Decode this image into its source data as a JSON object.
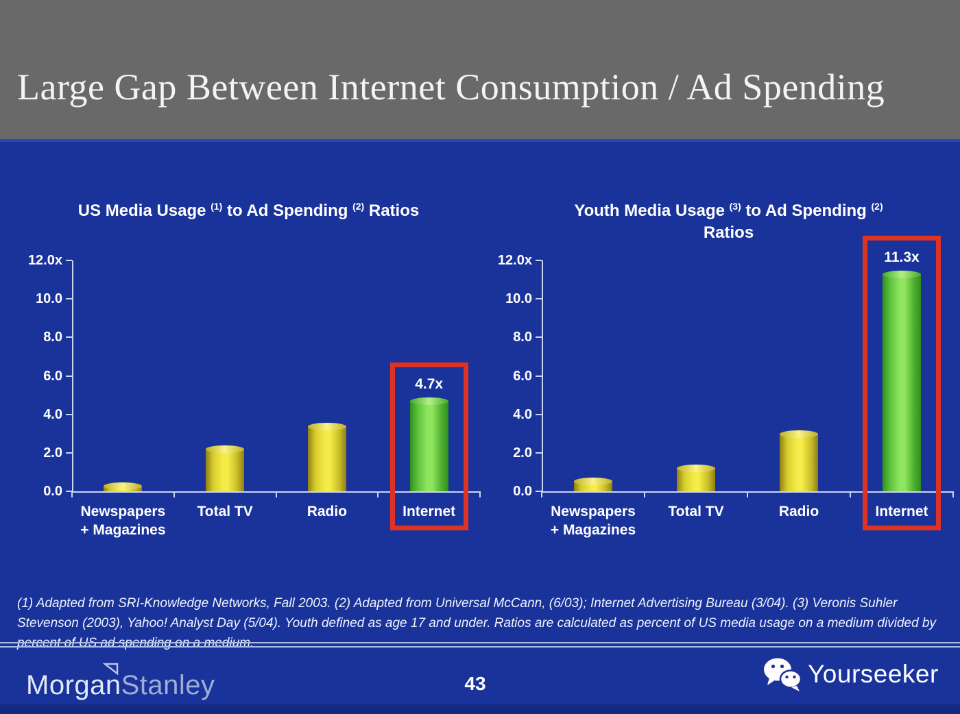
{
  "slide": {
    "title": "Large Gap Between Internet Consumption / Ad Spending",
    "page_number": "43",
    "footnote": "(1) Adapted from SRI-Knowledge Networks, Fall 2003.  (2) Adapted from Universal McCann, (6/03); Internet Advertising Bureau (3/04). (3) Veronis Suhler Stevenson (2003), Yahoo! Analyst Day (5/04).  Youth defined as age 17 and under.  Ratios are calculated as percent of US media usage on a medium divided by percent of US ad spending on a medium."
  },
  "footer": {
    "brand_word_1": "Morgan",
    "brand_word_2": "Stanley",
    "partner_brand": "Yourseeker"
  },
  "colors": {
    "header_gray": "#696969",
    "background_blue": "#1A339B",
    "bottom_strip_blue": "#142A82",
    "axis_light": "#CBD6F2",
    "text_white": "#FFFFFF",
    "bar_yellow_center": "#F4EC48",
    "bar_yellow_edge": "#8F7F14",
    "bar_green_center": "#90E55F",
    "bar_green_edge": "#2E8F1C",
    "highlight_red": "#DE3223"
  },
  "chart_data": [
    {
      "type": "bar",
      "title": "US Media Usage (1) to Ad Spending (2) Ratios",
      "title_segments": [
        {
          "t": "US Media Usage "
        },
        {
          "t": "(1)",
          "sup": true
        },
        {
          "t": " to Ad Spending "
        },
        {
          "t": "(2)",
          "sup": true
        },
        {
          "t": " Ratios"
        }
      ],
      "categories": [
        [
          "Newspapers",
          "+ Magazines"
        ],
        [
          "Total TV"
        ],
        [
          "Radio"
        ],
        [
          "Internet"
        ]
      ],
      "values": [
        0.3,
        2.2,
        3.4,
        4.7
      ],
      "bar_styles": [
        "yellow",
        "yellow",
        "yellow",
        "green"
      ],
      "highlight": {
        "index": 3,
        "label": "4.7x"
      },
      "ylim": [
        0,
        12
      ],
      "ylabel_ticks": [
        {
          "v": 12,
          "label": "12.0x"
        },
        {
          "v": 10,
          "label": "10.0"
        },
        {
          "v": 8,
          "label": "8.0"
        },
        {
          "v": 6,
          "label": "6.0"
        },
        {
          "v": 4,
          "label": "4.0"
        },
        {
          "v": 2,
          "label": "2.0"
        },
        {
          "v": 0,
          "label": "0.0"
        }
      ],
      "xlabel": "",
      "ylabel": "",
      "grid": false,
      "legend": null
    },
    {
      "type": "bar",
      "title": "Youth Media Usage (3) to Ad Spending (2) Ratios",
      "title_segments": [
        {
          "t": "Youth Media Usage "
        },
        {
          "t": "(3)",
          "sup": true
        },
        {
          "t": " to Ad Spending "
        },
        {
          "t": "(2)",
          "sup": true
        },
        {
          "br": true
        },
        {
          "t": "Ratios"
        }
      ],
      "categories": [
        [
          "Newspapers",
          "+ Magazines"
        ],
        [
          "Total TV"
        ],
        [
          "Radio"
        ],
        [
          "Internet"
        ]
      ],
      "values": [
        0.55,
        1.2,
        3.0,
        11.3
      ],
      "bar_styles": [
        "yellow",
        "yellow",
        "yellow",
        "green"
      ],
      "highlight": {
        "index": 3,
        "label": "11.3x"
      },
      "ylim": [
        0,
        12
      ],
      "ylabel_ticks": [
        {
          "v": 12,
          "label": "12.0x"
        },
        {
          "v": 10,
          "label": "10.0"
        },
        {
          "v": 8,
          "label": "8.0"
        },
        {
          "v": 6,
          "label": "6.0"
        },
        {
          "v": 4,
          "label": "4.0"
        },
        {
          "v": 2,
          "label": "2.0"
        },
        {
          "v": 0,
          "label": "0.0"
        }
      ],
      "xlabel": "",
      "ylabel": "",
      "grid": false,
      "legend": null
    }
  ]
}
